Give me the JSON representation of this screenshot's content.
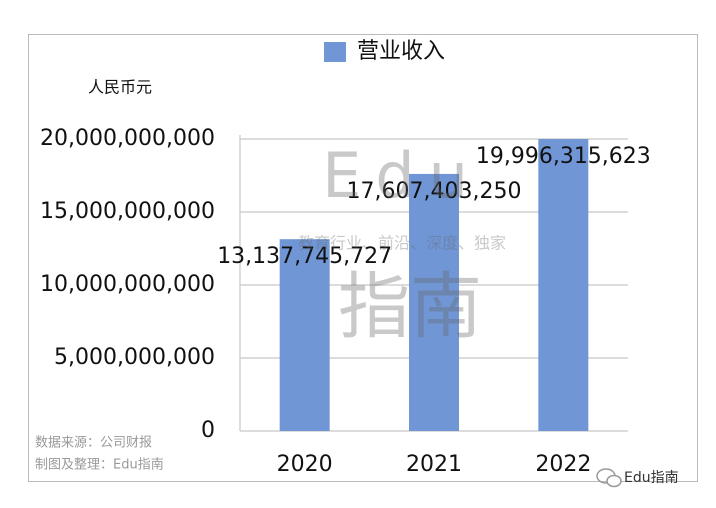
{
  "chart_data": {
    "type": "bar",
    "legend_label": "营业收入",
    "y_axis_label": "人民币元",
    "categories": [
      "2020",
      "2021",
      "2022"
    ],
    "values": [
      13137745727,
      17607403250,
      19996315623
    ],
    "value_labels": [
      "13,137,745,727",
      "17,607,403,250",
      "19,996,315,623"
    ],
    "color": "#7096d6",
    "ylim": [
      0,
      20000000000
    ],
    "yticks": [
      0,
      {
        "value": 5000000000,
        "label": "5,000,000,000"
      },
      {
        "value": 10000000000,
        "label": "10,000,000,000"
      },
      {
        "value": 15000000000,
        "label": "15,000,000,000"
      },
      {
        "value": 20000000000,
        "label": "20,000,000,000"
      }
    ],
    "grid": true,
    "source_notes": [
      "数据来源：公司财报",
      "制图及整理：Edu指南"
    ],
    "watermark": {
      "brand": "Edu",
      "tagline": "教育行业、前沿、深度、独家",
      "name": "指南"
    },
    "account": "Edu指南"
  }
}
